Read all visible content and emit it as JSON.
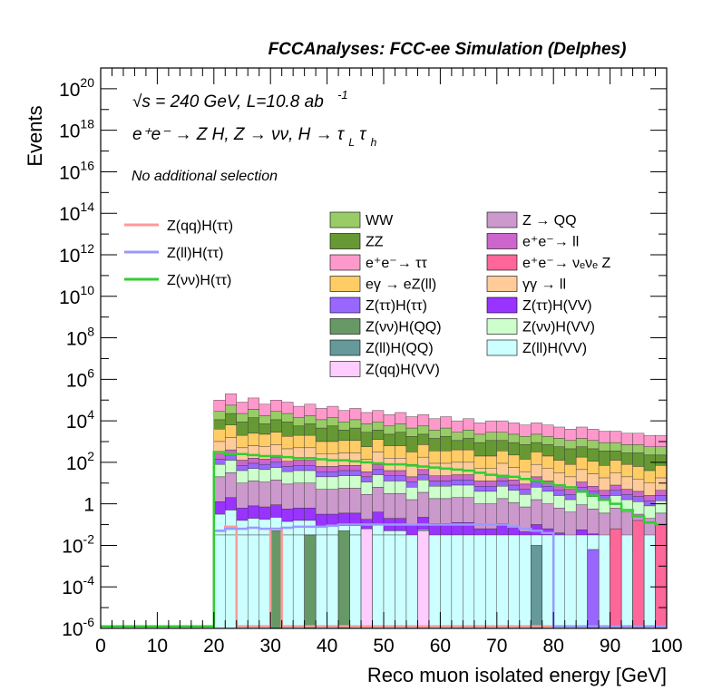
{
  "chart_data": {
    "type": "histogram-stacked",
    "title": "FCCAnalyses: FCC-ee Simulation (Delphes)",
    "xlabel": "Reco muon isolated energy [GeV]",
    "ylabel": "Events",
    "xlim": [
      0,
      100
    ],
    "ylim": [
      1e-06,
      1e+21
    ],
    "yscale": "log",
    "x_ticks": [
      "0",
      "10",
      "20",
      "30",
      "40",
      "50",
      "60",
      "70",
      "80",
      "90",
      "100"
    ],
    "y_ticks": [
      {
        "base": "10",
        "exp": "-6"
      },
      {
        "base": "10",
        "exp": "-4"
      },
      {
        "base": "10",
        "exp": "-2"
      },
      {
        "base": "1",
        "exp": ""
      },
      {
        "base": "10",
        "exp": "2"
      },
      {
        "base": "10",
        "exp": "4"
      },
      {
        "base": "10",
        "exp": "6"
      },
      {
        "base": "10",
        "exp": "8"
      },
      {
        "base": "10",
        "exp": "10"
      },
      {
        "base": "10",
        "exp": "12"
      },
      {
        "base": "10",
        "exp": "14"
      },
      {
        "base": "10",
        "exp": "16"
      },
      {
        "base": "10",
        "exp": "18"
      },
      {
        "base": "10",
        "exp": "20"
      }
    ],
    "annotations": {
      "energy_line": "√s = 240 GeV, L=10.8 ab",
      "energy_exp": "-1",
      "process_line": "e⁺e⁻ → Z H, Z → νν, H → τ",
      "process_sub_L": "L",
      "process_tau2": "τ",
      "process_sub_h": "h",
      "selection": "No additional selection"
    },
    "legend_placement": "middle",
    "bin_edges_start": 20,
    "bin_width": 2,
    "stack_top": [
      5.0,
      5.3,
      4.9,
      5.1,
      4.8,
      5.0,
      4.9,
      4.7,
      4.8,
      4.6,
      4.7,
      4.5,
      4.6,
      4.4,
      4.5,
      4.3,
      4.4,
      4.2,
      4.3,
      4.1,
      4.2,
      4.0,
      4.1,
      3.9,
      4.0,
      4.0,
      3.9,
      3.8,
      3.9,
      3.8,
      3.7,
      3.6,
      3.7,
      3.6,
      3.5,
      3.5,
      3.4,
      3.4,
      3.3,
      3.3
    ],
    "background_series": [
      {
        "name": "WW",
        "color": "#99cc66"
      },
      {
        "name": "ZZ",
        "color": "#669933"
      },
      {
        "name": "e⁺e⁻→ ττ",
        "color": "#ff99cc"
      },
      {
        "name": "eγ → eZ(ll)",
        "color": "#ffcc66"
      },
      {
        "name": "Z(ττ)H(ττ)",
        "color": "#9966ff"
      },
      {
        "name": "Z(νν)H(QQ)",
        "color": "#669966"
      },
      {
        "name": "Z(ll)H(QQ)",
        "color": "#669999"
      },
      {
        "name": "Z(qq)H(VV)",
        "color": "#ffccff"
      },
      {
        "name": "Z → QQ",
        "color": "#cc99cc"
      },
      {
        "name": "e⁺e⁻→ ll",
        "color": "#cc66cc"
      },
      {
        "name": "e⁺e⁻→ νₑνₑ Z",
        "color": "#ff6699"
      },
      {
        "name": "γγ → ll",
        "color": "#ffcc99"
      },
      {
        "name": "Z(ττ)H(VV)",
        "color": "#9933ff"
      },
      {
        "name": "Z(νν)H(VV)",
        "color": "#ccffcc"
      },
      {
        "name": "Z(ll)H(VV)",
        "color": "#ccffff"
      }
    ],
    "signal_series": [
      {
        "name": "Z(qq)H(ττ)",
        "color": "#ff9999"
      },
      {
        "name": "Z(ll)H(ττ)",
        "color": "#9999ff"
      },
      {
        "name": "Z(νν)H(ττ)",
        "color": "#33cc33"
      }
    ],
    "signal_zvv_log10": [
      2.5,
      2.4,
      2.4,
      2.35,
      2.3,
      2.3,
      2.25,
      2.2,
      2.2,
      2.15,
      2.1,
      2.1,
      2.05,
      2.0,
      1.95,
      1.9,
      1.9,
      1.85,
      1.8,
      1.75,
      1.7,
      1.65,
      1.6,
      1.5,
      1.4,
      1.35,
      1.3,
      1.2,
      1.1,
      1.0,
      0.9,
      0.8,
      0.6,
      0.4,
      0.2,
      0.0,
      -0.3,
      -0.6,
      -0.9,
      -1.0
    ],
    "signal_zll_log10": [
      -1.3,
      -1.2,
      -1.2,
      -1.15,
      -1.2,
      -1.2,
      -1.15,
      -1.1,
      -1.1,
      -1.1,
      -1.05,
      -1.0,
      -1.0,
      -1.0,
      -1.0,
      -1.0,
      -1.0,
      -1.0,
      -1.0,
      -1.0,
      -1.0,
      -1.0,
      -1.0,
      -1.0,
      -1.0,
      -1.0,
      -1.1,
      -1.2,
      -1.3,
      -1.4,
      -6.0,
      -6.0,
      -6.0,
      -6.0,
      -6.0,
      -6.0,
      -6.0,
      -6.0,
      -6.0,
      -6.0
    ],
    "signal_zqq_log10": [
      -1.3,
      -1.1,
      -6.0,
      -6.0,
      -6.0,
      -1.2,
      -6.0,
      -6.0,
      -6.0,
      -6.0,
      -6.0,
      -6.0,
      -6.0,
      -6.0,
      -6.0,
      -6.0,
      -6.0,
      -6.0,
      -6.0,
      -6.0,
      -6.0,
      -6.0,
      -6.0,
      -6.0,
      -6.0,
      -6.0,
      -6.0,
      -6.0,
      -6.0,
      -6.0,
      -6.0,
      -6.0,
      -6.0,
      -6.0,
      -6.0,
      -6.0,
      -6.0,
      -6.0,
      -6.0,
      -6.0
    ]
  }
}
